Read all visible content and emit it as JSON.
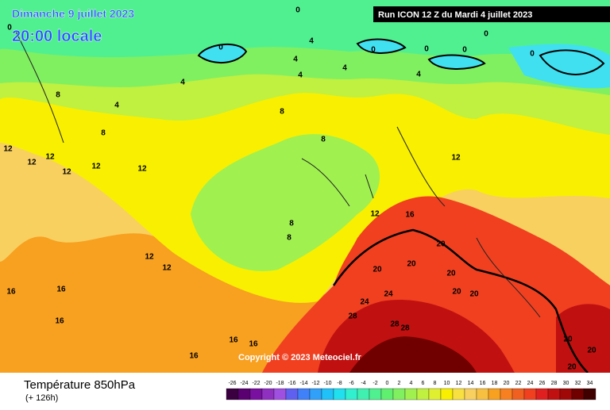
{
  "header": {
    "date": "Dimanche 9 juillet 2023",
    "time": "20:00 locale",
    "run": "Run ICON 12 Z du Mardi 4 juillet 2023"
  },
  "footer": {
    "variable": "Température 850hPa",
    "lead": "(+ 126h)",
    "copyright": "Copyright © 2023 Meteociel.fr"
  },
  "legend": {
    "ticks": [
      -26,
      -24,
      -22,
      -20,
      -18,
      -16,
      -14,
      -12,
      -10,
      -8,
      -6,
      -4,
      -2,
      0,
      2,
      4,
      6,
      8,
      10,
      12,
      14,
      16,
      18,
      20,
      22,
      24,
      26,
      28,
      30,
      32,
      34
    ],
    "colors": [
      "#3a0040",
      "#5a0070",
      "#7a10a0",
      "#9030c0",
      "#a050e0",
      "#6060f0",
      "#4080f8",
      "#30a0f8",
      "#20c0f8",
      "#20e0f0",
      "#30f0d0",
      "#40f0b0",
      "#50f090",
      "#60f070",
      "#80f060",
      "#a0f050",
      "#c0f040",
      "#e0f030",
      "#f8f000",
      "#f8e040",
      "#f8d060",
      "#f8c040",
      "#f8a020",
      "#f88020",
      "#f06020",
      "#f04020",
      "#e02020",
      "#c01010",
      "#a00808",
      "#700000",
      "#400000"
    ]
  },
  "contour_labels": [
    "0",
    "0",
    "0",
    "0",
    "0",
    "0",
    "0",
    "0",
    "4",
    "4",
    "4",
    "4",
    "4",
    "4",
    "4",
    "8",
    "8",
    "8",
    "8",
    "8",
    "8",
    "12",
    "12",
    "12",
    "12",
    "12",
    "12",
    "12",
    "12",
    "12",
    "12",
    "16",
    "16",
    "16",
    "16",
    "16",
    "16",
    "16",
    "20",
    "20",
    "20",
    "20",
    "20",
    "20",
    "24",
    "24",
    "28",
    "28",
    "28",
    "20",
    "20",
    "20"
  ]
}
